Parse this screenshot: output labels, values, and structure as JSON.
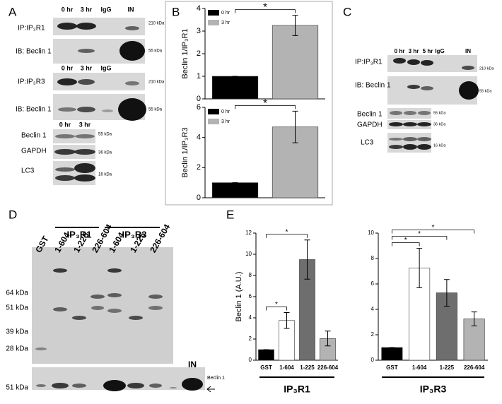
{
  "panel_labels": [
    "A",
    "B",
    "C",
    "D",
    "E"
  ],
  "panel_a": {
    "lanes_1": [
      "0 hr",
      "3 hr",
      "IgG",
      "IN"
    ],
    "lanes_2": [
      "0 hr",
      "3 hr",
      "IgG"
    ],
    "lanes_3": [
      "0 hr",
      "3 hr"
    ],
    "rows": [
      "IP:IP₃R1",
      "IB: Beclin 1",
      "IP:IP₃R3",
      "IB: Beclin 1",
      "Beclin 1",
      "GAPDH",
      "LC3"
    ],
    "sizes": [
      "210 kDa",
      "55 kDa",
      "210 kDa",
      "55 kDa",
      "55 kDa",
      "36 kDa",
      "16 kDa"
    ]
  },
  "panel_c": {
    "lanes": [
      "0 hr",
      "3 hr",
      "5 hr",
      "IgG",
      "IN"
    ],
    "rows": [
      "IP:IP₃R1",
      "IB: Beclin 1",
      "Beclin 1",
      "GAPDH",
      "LC3"
    ],
    "sizes": [
      "210 kDa",
      "55 kDa",
      "55 kDa",
      "36 kDa",
      "16 kDa"
    ]
  },
  "panel_d": {
    "groups": [
      "IP₃R1",
      "IP₃R3"
    ],
    "lanes": [
      "GST",
      "1-604",
      "1-225",
      "226-604",
      "1-604",
      "1-225",
      "226-604"
    ],
    "markers": [
      "64 kDa",
      "51 kDa",
      "39 kDa",
      "28 kDa"
    ],
    "blot_marker": "51 kDa",
    "input_lane": "IN",
    "blot_label": "Beclin 1"
  },
  "chart_data": [
    {
      "type": "bar",
      "y_label": "Beclin 1/IP₃R1",
      "series": [
        {
          "name": "0 hr",
          "color": "#000000",
          "values": [
            1
          ],
          "errors": [
            0
          ]
        },
        {
          "name": "3 hr",
          "color": "#b3b3b3",
          "values": [
            3.25
          ],
          "errors": [
            0.45
          ]
        }
      ],
      "ylim": [
        0,
        4
      ],
      "yticks": [
        0,
        1,
        2,
        3,
        4
      ],
      "annotations": [
        "*"
      ]
    },
    {
      "type": "bar",
      "y_label": "Beclin 1/IP₃R3",
      "series": [
        {
          "name": "0 hr",
          "color": "#000000",
          "values": [
            1
          ],
          "errors": [
            0
          ]
        },
        {
          "name": "3 hr",
          "color": "#b3b3b3",
          "values": [
            4.7
          ],
          "errors": [
            1.05
          ]
        }
      ],
      "ylim": [
        0,
        6
      ],
      "yticks": [
        0,
        2,
        4,
        6
      ],
      "annotations": [
        "*"
      ]
    },
    {
      "type": "bar",
      "y_label": "Beclin 1 (A.U.)",
      "group_label": "IP₃R1",
      "categories": [
        "GST",
        "1-604",
        "1-225",
        "226-604"
      ],
      "values": [
        1,
        3.75,
        9.5,
        2.05
      ],
      "errors": [
        0,
        0.75,
        1.85,
        0.7
      ],
      "colors": [
        "#000000",
        "#ffffff",
        "#6e6e6e",
        "#b3b3b3"
      ],
      "ylim": [
        0,
        12
      ],
      "yticks": [
        0,
        2,
        4,
        6,
        8,
        10,
        12
      ],
      "annotations": [
        "*",
        "*"
      ]
    },
    {
      "type": "bar",
      "group_label": "IP₃R3",
      "categories": [
        "GST",
        "1-604",
        "1-225",
        "226-604"
      ],
      "values": [
        1,
        7.25,
        5.3,
        3.25
      ],
      "errors": [
        0,
        1.55,
        1.05,
        0.55
      ],
      "colors": [
        "#000000",
        "#ffffff",
        "#6e6e6e",
        "#b3b3b3"
      ],
      "ylim": [
        0,
        10
      ],
      "yticks": [
        0,
        2,
        4,
        6,
        8,
        10
      ],
      "annotations": [
        "*",
        "*",
        "*"
      ]
    }
  ]
}
